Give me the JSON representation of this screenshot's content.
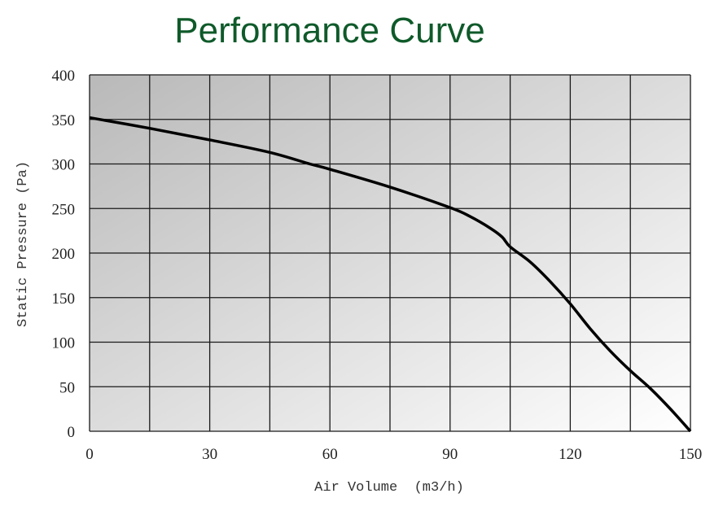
{
  "chart_data": {
    "type": "line",
    "title": "Performance Curve",
    "xlabel": "Air Volume  (m3/h)",
    "ylabel": "Static Pressure (Pa)",
    "xlim": [
      0,
      150
    ],
    "ylim": [
      0,
      400
    ],
    "x_ticks": [
      0,
      30,
      60,
      90,
      120,
      150
    ],
    "y_ticks": [
      0,
      50,
      100,
      150,
      200,
      250,
      300,
      350,
      400
    ],
    "x_grid_step": 15,
    "y_grid_step": 50,
    "grid": true,
    "title_color": "#0f5a2a",
    "line_color": "#000000",
    "series": [
      {
        "x": [
          0,
          15,
          30,
          45,
          55,
          60,
          75,
          90,
          95,
          100,
          103,
          105,
          110,
          115,
          120,
          125,
          130,
          135,
          140,
          145,
          150
        ],
        "y": [
          352,
          340,
          327,
          313,
          300,
          294,
          274,
          251,
          241,
          228,
          218,
          207,
          190,
          168,
          143,
          115,
          90,
          68,
          48,
          25,
          0
        ]
      }
    ]
  }
}
